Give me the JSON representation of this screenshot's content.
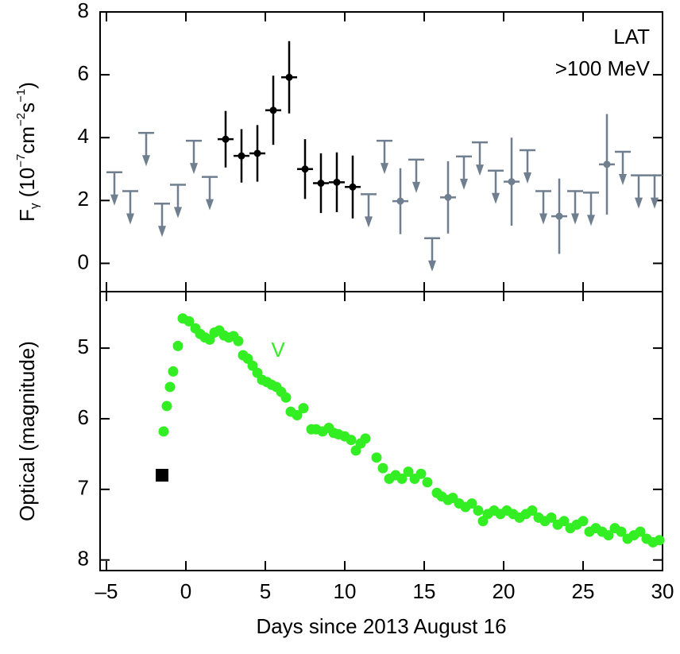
{
  "chart_data": [
    {
      "type": "errorbar",
      "ylabel": [
        {
          "text": "F"
        },
        {
          "text": "γ",
          "shift": "sub"
        },
        {
          "text": " (10"
        },
        {
          "text": "−7",
          "shift": "sup"
        },
        {
          "text": "cm"
        },
        {
          "text": "−2",
          "shift": "sup"
        },
        {
          "text": "s"
        },
        {
          "text": "−1",
          "shift": "sup"
        },
        {
          "text": ")"
        }
      ],
      "annotations": [
        {
          "text": "LAT",
          "color": "#000000"
        },
        {
          "text": ">100 MeV",
          "color": "#000000"
        }
      ],
      "xlim": [
        -5.4,
        30
      ],
      "xticks": [
        -5,
        0,
        5,
        10,
        15,
        20,
        25,
        30
      ],
      "show_xtick_labels": false,
      "ylim": [
        -0.9,
        8
      ],
      "yticks": [
        0,
        2,
        4,
        6,
        8
      ],
      "series": [
        {
          "kind": "detection",
          "color": "#000000",
          "x": [
            2.5,
            3.5,
            4.5,
            5.5,
            6.5,
            7.5,
            8.5,
            9.5,
            10.5
          ],
          "values": [
            3.95,
            3.42,
            3.5,
            4.87,
            5.92,
            3.0,
            2.55,
            2.58,
            2.43
          ],
          "yerr": [
            0.9,
            0.85,
            0.9,
            1.1,
            1.15,
            0.95,
            0.95,
            0.95,
            1.0
          ],
          "xerr": [
            0.5,
            0.5,
            0.5,
            0.5,
            0.5,
            0.5,
            0.5,
            0.5,
            0.5
          ]
        },
        {
          "kind": "detection",
          "color": "#6f7f8f",
          "x": [
            13.5,
            16.5,
            20.5,
            23.5,
            26.5
          ],
          "values": [
            1.98,
            2.1,
            2.6,
            1.5,
            3.15
          ],
          "yerr": [
            1.05,
            1.15,
            1.4,
            1.2,
            1.6
          ],
          "xerr": [
            0.5,
            0.5,
            0.5,
            0.5,
            0.5
          ]
        },
        {
          "kind": "upper_limit",
          "color": "#6f7f8f",
          "x": [
            -4.5,
            -3.5,
            -2.5,
            -1.5,
            -0.5,
            0.5,
            1.5,
            11.5,
            12.5,
            14.5,
            15.5,
            17.5,
            18.5,
            19.5,
            21.5,
            22.5,
            24.5,
            25.5,
            27.5,
            28.5,
            29.5
          ],
          "values": [
            2.9,
            2.3,
            4.15,
            1.9,
            2.5,
            3.9,
            2.75,
            2.2,
            3.9,
            3.3,
            0.8,
            3.4,
            3.85,
            2.95,
            3.6,
            2.3,
            2.3,
            2.25,
            3.55,
            2.8,
            2.8
          ],
          "xerr": [
            0.5,
            0.5,
            0.5,
            0.5,
            0.5,
            0.5,
            0.5,
            0.5,
            0.5,
            0.5,
            0.5,
            0.5,
            0.5,
            0.5,
            0.5,
            0.5,
            0.5,
            0.5,
            0.5,
            0.5,
            0.5
          ]
        }
      ]
    },
    {
      "type": "scatter",
      "ylabel": "Optical (magnitude)",
      "xlabel": "Days since 2013 August 16",
      "annotations": [
        {
          "text": "V",
          "color": "#33ee22"
        }
      ],
      "xlim": [
        -5.4,
        30
      ],
      "xticks": [
        {
          "value": -5,
          "label": "–5"
        },
        0,
        5,
        10,
        15,
        20,
        25,
        30
      ],
      "show_xtick_labels": true,
      "ylim": [
        4.2,
        8.15
      ],
      "yinverted": true,
      "yticks": [
        5,
        6,
        7,
        8
      ],
      "series": [
        {
          "marker": "circle",
          "color": "#33ee22",
          "x": [
            -1.4,
            -1.2,
            -1.0,
            -0.8,
            -0.5,
            -0.2,
            0.2,
            0.6,
            0.9,
            1.2,
            1.5,
            1.8,
            2.1,
            2.4,
            2.7,
            3.0,
            3.3,
            3.6,
            3.9,
            4.2,
            4.5,
            4.8,
            5.1,
            5.4,
            5.7,
            6.0,
            6.3,
            6.6,
            7.0,
            7.4,
            7.9,
            8.2,
            8.6,
            9.0,
            9.3,
            9.6,
            10.0,
            10.4,
            10.7,
            11.0,
            11.3,
            12.0,
            12.4,
            12.8,
            13.2,
            13.6,
            14.0,
            14.4,
            14.8,
            15.2,
            15.8,
            16.1,
            16.5,
            16.8,
            17.2,
            17.6,
            18.0,
            18.4,
            18.7,
            19.0,
            19.4,
            19.8,
            20.2,
            20.6,
            21.0,
            21.4,
            21.8,
            22.2,
            22.6,
            23.0,
            23.4,
            23.8,
            24.2,
            24.6,
            25.0,
            25.4,
            25.8,
            26.2,
            26.6,
            27.0,
            27.4,
            27.8,
            28.2,
            28.6,
            29.0,
            29.4,
            29.8
          ],
          "values": [
            6.18,
            5.82,
            5.55,
            5.33,
            4.97,
            4.58,
            4.62,
            4.72,
            4.8,
            4.85,
            4.88,
            4.78,
            4.75,
            4.82,
            4.85,
            4.83,
            4.9,
            5.1,
            5.15,
            5.25,
            5.35,
            5.45,
            5.48,
            5.52,
            5.55,
            5.62,
            5.7,
            5.9,
            5.95,
            5.85,
            6.15,
            6.15,
            6.18,
            6.13,
            6.2,
            6.22,
            6.25,
            6.3,
            6.45,
            6.35,
            6.28,
            6.55,
            6.7,
            6.85,
            6.8,
            6.85,
            6.75,
            6.85,
            6.78,
            6.9,
            7.05,
            7.1,
            7.15,
            7.12,
            7.2,
            7.25,
            7.2,
            7.3,
            7.45,
            7.35,
            7.3,
            7.35,
            7.3,
            7.35,
            7.4,
            7.35,
            7.3,
            7.4,
            7.45,
            7.4,
            7.5,
            7.45,
            7.55,
            7.5,
            7.45,
            7.6,
            7.55,
            7.6,
            7.65,
            7.55,
            7.6,
            7.7,
            7.65,
            7.6,
            7.7,
            7.75,
            7.72
          ]
        },
        {
          "marker": "square",
          "color": "#000000",
          "x": [
            -1.5
          ],
          "values": [
            6.8
          ]
        }
      ]
    }
  ]
}
